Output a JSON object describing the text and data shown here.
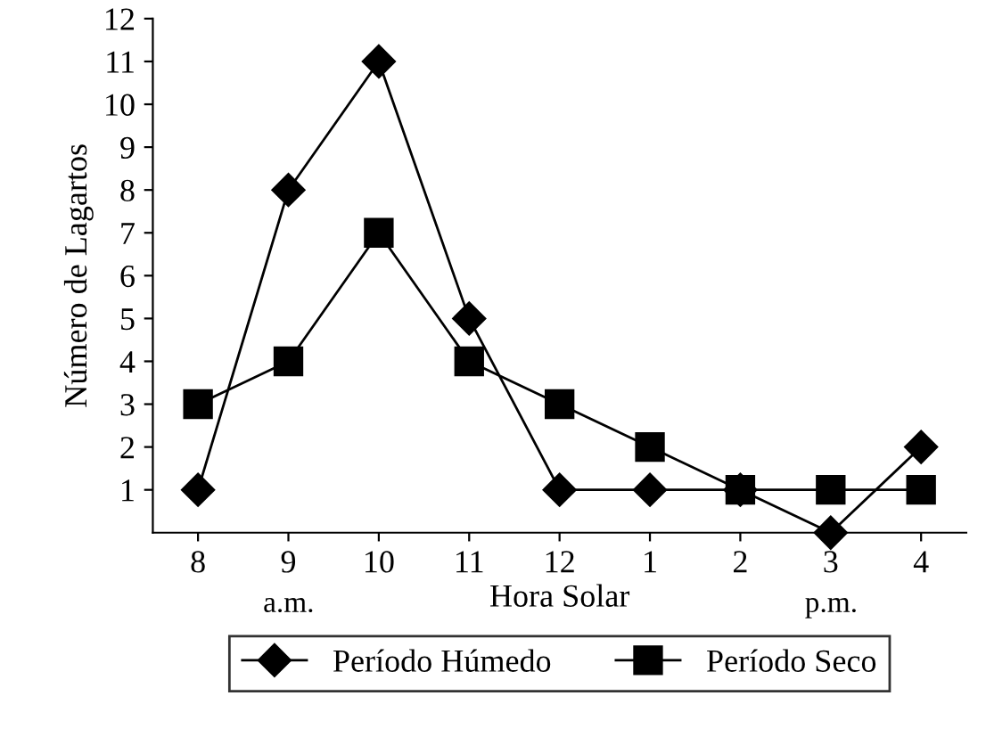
{
  "chart_data": {
    "type": "line",
    "xlabel": "Hora Solar",
    "ylabel": "Número de Lagartos",
    "categories": [
      "8",
      "9",
      "10",
      "11",
      "12",
      "1",
      "2",
      "3",
      "4"
    ],
    "series": [
      {
        "name": "Período Húmedo",
        "color": "#000000",
        "marker": "diamond",
        "values": [
          1,
          8,
          11,
          5,
          1,
          1,
          1,
          0,
          2
        ]
      },
      {
        "name": "Período Seco",
        "color": "#000000",
        "marker": "square",
        "values": [
          3,
          4,
          7,
          4,
          3,
          2,
          1,
          1,
          1
        ]
      }
    ],
    "ylim": [
      0,
      12
    ],
    "yticks": [
      1,
      2,
      3,
      4,
      5,
      6,
      7,
      8,
      9,
      10,
      11,
      12
    ],
    "annotations": [
      "a.m.",
      "p.m."
    ],
    "grid": false,
    "legend": "bottom",
    "line_style": "solid"
  }
}
